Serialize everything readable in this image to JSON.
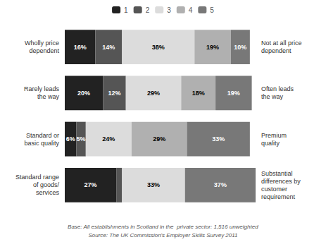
{
  "chart_data": {
    "type": "bar",
    "orientation": "horizontal",
    "stacked": true,
    "categories": [
      "Wholly price\ndependent",
      "Rarely leads\nthe way",
      "Standard or\nbasic quality",
      "Standard range\nof goods/\nservices"
    ],
    "right_labels": [
      "Not at all price\ndependent",
      "Often leads\nthe way",
      "Premium\nquality",
      "Substantial\ndifferences by\ncustomer\nrequirement"
    ],
    "series": [
      {
        "name": "1",
        "color": "#222222",
        "values": [
          16,
          20,
          6,
          27
        ],
        "value_labels": [
          "16%",
          "20%",
          "6%",
          "27%"
        ]
      },
      {
        "name": "2",
        "color": "#555555",
        "values": [
          14,
          12,
          5,
          3
        ],
        "value_labels": [
          "14%",
          "12%",
          "5%",
          null
        ]
      },
      {
        "name": "3",
        "color": "#dcdcdc",
        "values": [
          38,
          29,
          24,
          33
        ],
        "value_labels": [
          "38%",
          "29%",
          "24%",
          "33%"
        ]
      },
      {
        "name": "4",
        "color": "#b0b0b0",
        "values": [
          19,
          18,
          29,
          0
        ],
        "value_labels": [
          "19%",
          "18%",
          "29%",
          null
        ]
      },
      {
        "name": "5",
        "color": "#787878",
        "values": [
          10,
          19,
          33,
          37
        ],
        "value_labels": [
          "10%",
          "19%",
          "33%",
          "37%"
        ]
      }
    ],
    "xlim": [
      0,
      100
    ],
    "data_labels": true,
    "tick_labels": false,
    "grid": false,
    "legend": "top",
    "annotations": [
      "Base: All establishments in Scotland in the  private sector: 1,516 unweighted",
      "Source: The UK Commission's Employer Skills Survey 2011"
    ]
  }
}
